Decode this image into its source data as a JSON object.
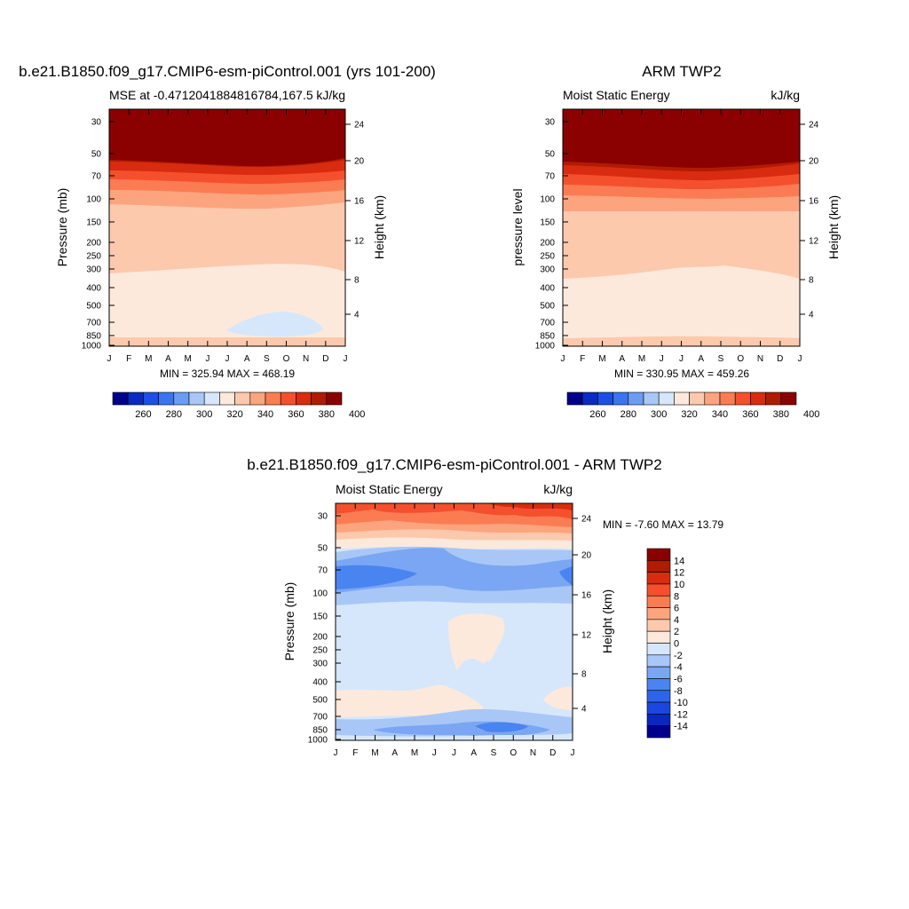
{
  "colors": {
    "levels_abs": [
      "#00008b",
      "#0a2ac4",
      "#1c4fe6",
      "#3c73f0",
      "#6a9df2",
      "#a9c7f6",
      "#d6e7fb",
      "#fde9dc",
      "#fcc9ad",
      "#fca47e",
      "#fb7c53",
      "#f4502e",
      "#d92b10",
      "#b01b03",
      "#8b0000"
    ],
    "levels_diff": [
      "#00008b",
      "#0a28c0",
      "#1c46e0",
      "#2d64eb",
      "#4a84f0",
      "#7aa6f4",
      "#a9c7f6",
      "#d6e7fb",
      "#fde9dc",
      "#fcc9ad",
      "#fca47e",
      "#fb7c53",
      "#f4502e",
      "#d92b10",
      "#b01b03",
      "#8b0000"
    ]
  },
  "chart_data": [
    {
      "type": "contour",
      "title": "b.e21.B1850.f09_g17.CMIP6-esm-piControl.001 (yrs 101-200)",
      "subtitle_left": "MSE at -0.4712041884816784,167.5",
      "subtitle_right": "kJ/kg",
      "ylabel": "Pressure (mb)",
      "ylabel_right": "Height (km)",
      "x": [
        "J",
        "F",
        "M",
        "A",
        "M",
        "J",
        "J",
        "A",
        "S",
        "O",
        "N",
        "D",
        "J"
      ],
      "y_ticks": [
        "30",
        "50",
        "70",
        "100",
        "150",
        "200",
        "250",
        "300",
        "400",
        "500",
        "700",
        "850",
        "1000"
      ],
      "y_ticks_right": [
        "24",
        "20",
        "16",
        "12",
        "8",
        "4"
      ],
      "yscale": "log",
      "ylim": [
        1000,
        20
      ],
      "min_max_text": "MIN = 325.94 MAX = 468.19",
      "min": 325.94,
      "max": 468.19,
      "colorbar": {
        "orientation": "horizontal",
        "labels": [
          "260",
          "280",
          "300",
          "320",
          "340",
          "360",
          "380",
          "400"
        ]
      }
    },
    {
      "type": "contour",
      "title": "ARM TWP2",
      "subtitle_left": "Moist Static Energy",
      "subtitle_right": "kJ/kg",
      "ylabel": "pressure level",
      "ylabel_right": "Height (km)",
      "x": [
        "J",
        "F",
        "M",
        "A",
        "M",
        "J",
        "J",
        "A",
        "S",
        "O",
        "N",
        "D",
        "J"
      ],
      "y_ticks": [
        "30",
        "50",
        "70",
        "100",
        "150",
        "200",
        "250",
        "300",
        "400",
        "500",
        "700",
        "850",
        "1000"
      ],
      "y_ticks_right": [
        "24",
        "20",
        "16",
        "12",
        "8",
        "4"
      ],
      "yscale": "log",
      "ylim": [
        1000,
        20
      ],
      "min_max_text": "MIN = 330.95 MAX = 459.26",
      "min": 330.95,
      "max": 459.26,
      "colorbar": {
        "orientation": "horizontal",
        "labels": [
          "260",
          "280",
          "300",
          "320",
          "340",
          "360",
          "380",
          "400"
        ]
      }
    },
    {
      "type": "contour",
      "title": "b.e21.B1850.f09_g17.CMIP6-esm-piControl.001 - ARM TWP2",
      "subtitle_left": "Moist Static Energy",
      "subtitle_right": "kJ/kg",
      "ylabel": "Pressure (mb)",
      "ylabel_right": "Height (km)",
      "x": [
        "J",
        "F",
        "M",
        "A",
        "M",
        "J",
        "J",
        "A",
        "S",
        "O",
        "N",
        "D",
        "J"
      ],
      "y_ticks": [
        "30",
        "50",
        "70",
        "100",
        "150",
        "200",
        "250",
        "300",
        "400",
        "500",
        "700",
        "850",
        "1000"
      ],
      "y_ticks_right": [
        "24",
        "20",
        "16",
        "12",
        "8",
        "4"
      ],
      "yscale": "log",
      "ylim": [
        1000,
        20
      ],
      "min_max_text": "MIN =  -7.60 MAX =  13.79",
      "min": -7.6,
      "max": 13.79,
      "colorbar": {
        "orientation": "vertical",
        "labels": [
          "14",
          "12",
          "10",
          "8",
          "6",
          "4",
          "2",
          "0",
          "-2",
          "-4",
          "-6",
          "-8",
          "-10",
          "-12",
          "-14"
        ]
      }
    }
  ]
}
